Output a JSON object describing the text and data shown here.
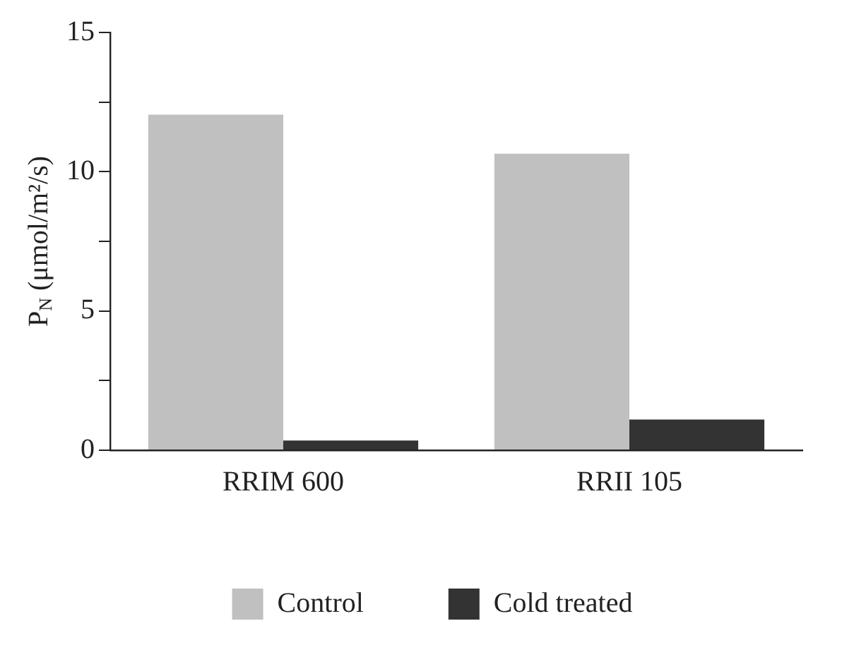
{
  "chart_data": {
    "type": "bar",
    "ylabel": "P$_{N}$ (μmol/m²/s)",
    "categories": [
      "RRIM 600",
      "RRII 105"
    ],
    "series": [
      {
        "name": "Control",
        "color": "#c0c0c0",
        "values": [
          12.05,
          10.65
        ]
      },
      {
        "name": "Cold treated",
        "color": "#333333",
        "values": [
          0.35,
          1.1
        ]
      }
    ],
    "ylim": [
      0,
      15
    ],
    "yticks": [
      0,
      {
        "value": 2.5,
        "label": null
      },
      5,
      {
        "value": 7.5,
        "label": null
      },
      10,
      {
        "value": 12.5,
        "label": null
      },
      15
    ],
    "grid": false,
    "legend": "bottom"
  }
}
